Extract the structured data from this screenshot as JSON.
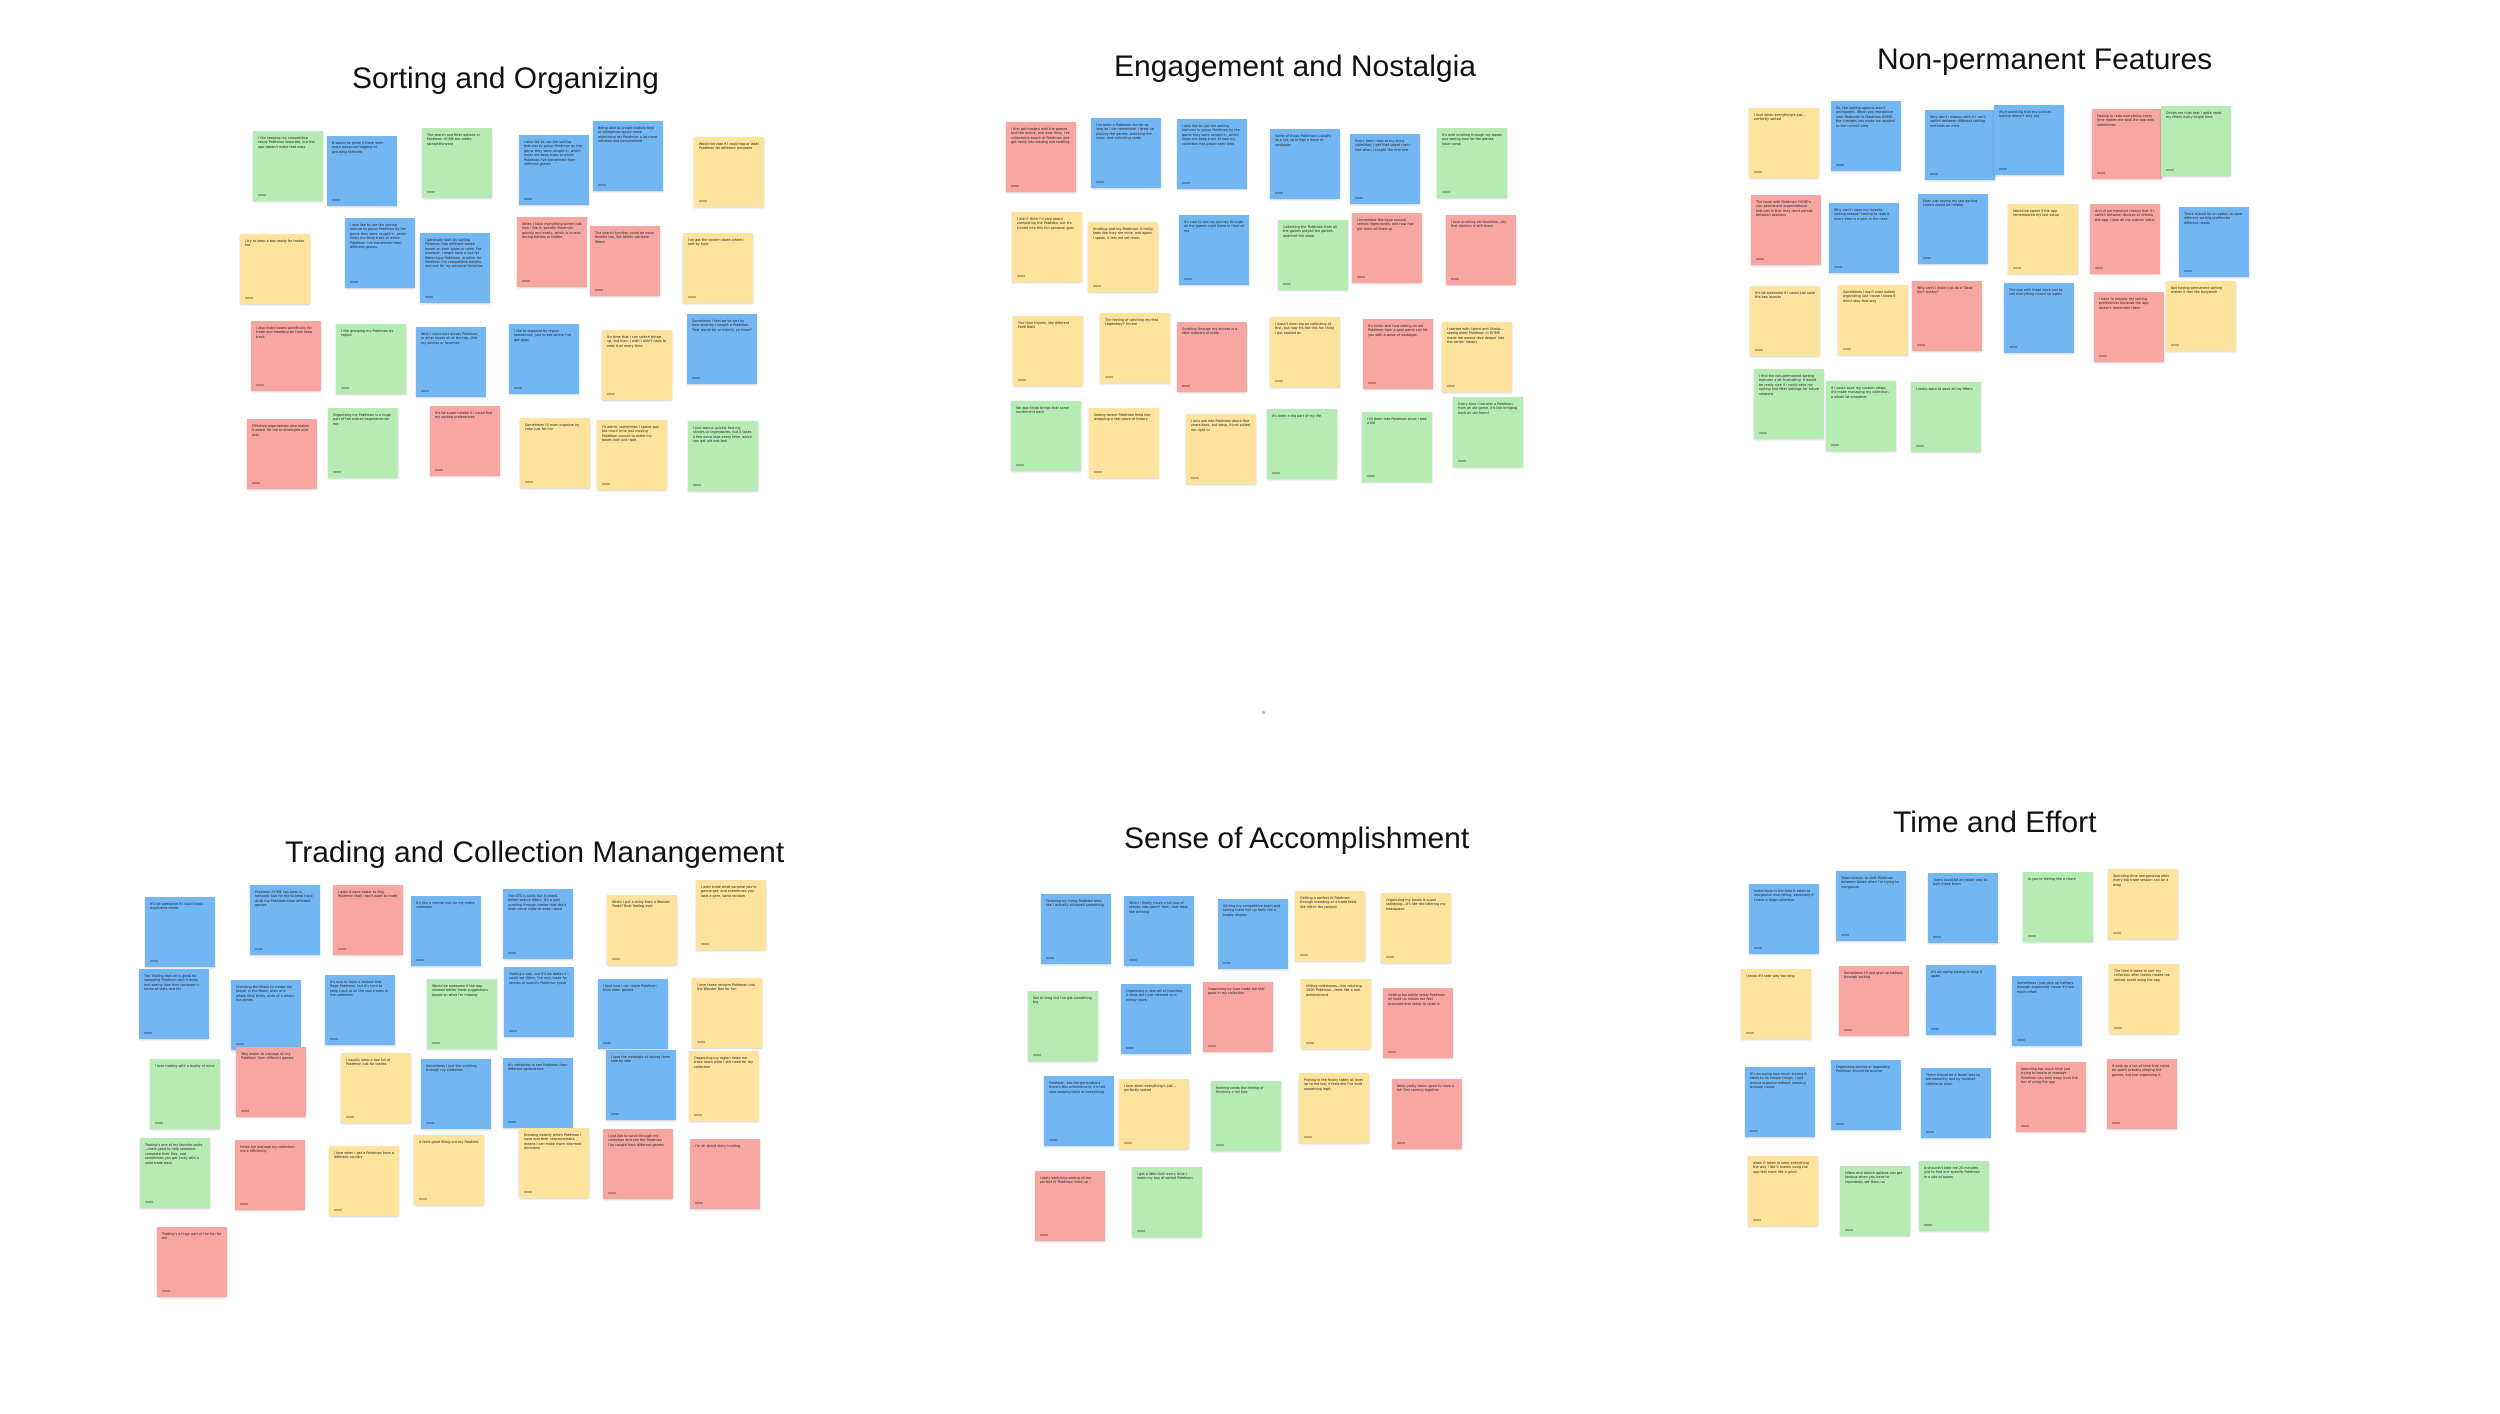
{
  "colors": {
    "yellow": "#fde39b",
    "blue": "#73b6f4",
    "green": "#b6ebb4",
    "red": "#f7a6a2"
  },
  "clusters": [
    {
      "title": "Sorting and Organizing",
      "notes": [
        {
          "c": "green",
          "t": "I like keeping my competitive ready Pokémon separate, but the app doesn't make that easy"
        },
        {
          "c": "blue",
          "t": "It would be great if there were more advanced tagging or grouping features"
        },
        {
          "c": "green",
          "t": "The search and filter options in Pokémon HOME are pretty straightforward"
        },
        {
          "c": "blue",
          "t": "I also like to use the sorting features to group Pokémon by the game they were caught in, which helps me keep track of which Pokémon I've transferred from different games"
        },
        {
          "c": "blue",
          "t": "Being able to create custom tags or categories would make organizing my Pokémon a lot more intuitive and personalized"
        },
        {
          "c": "yellow",
          "t": "Would be cool if I could tag or label Pokémon for different purposes"
        },
        {
          "c": "yellow",
          "t": "I try to keep a box ready for trades too"
        },
        {
          "c": "blue",
          "t": "I also like to use the sorting feature to group Pokémon by the game they were caught in, which helps me keep track of which Pokémon I've transferred from different games"
        },
        {
          "c": "blue",
          "t": "I generally start by sorting Pokémon into different boxes based on their types or roles. For example, I might have a box for Water-type Pokémon, another for Pokémon I'm competitive battles, and one for my personal favorites"
        },
        {
          "c": "red",
          "t": "When I have everything sorted just how I like it, specific Pokémon quickly and easily, which is crucial during battles or trades"
        },
        {
          "c": "red",
          "t": "The search function could be more flexible too, like better combine filters"
        },
        {
          "c": "yellow",
          "t": "I've got the system down where I sort by type"
        },
        {
          "c": "red",
          "t": "I also make boxes specifically for trade and breeding so I can keep track"
        },
        {
          "c": "green",
          "t": "I like grouping my Pokémon by region"
        },
        {
          "c": "blue",
          "t": "Wish I could sort across Pokémon in other boxes all at the top—like my shinies or favorites"
        },
        {
          "c": "blue",
          "t": "I like to organize by region sometimes, just to see where I've got gaps"
        },
        {
          "c": "yellow",
          "t": "It's time that I can switch things up, but man, I wish I didn't have to redo it all every time"
        },
        {
          "c": "blue",
          "t": "Sometimes I feel we've sort by how recently I caught a Pokémon. That would be so helpful, ya know?"
        },
        {
          "c": "red",
          "t": "Effective organization also makes it easier for me to strategize and plan"
        },
        {
          "c": "green",
          "t": "Organizing my Pokémon is a huge part of the overall experience for me"
        },
        {
          "c": "red",
          "t": "It'd be super helpful if I could find my sorting preferences"
        },
        {
          "c": "yellow",
          "t": "Sometimes I'll even organize by color just for fun"
        },
        {
          "c": "yellow",
          "t": "I'd admit, sometimes I spend way too much time just moving Pokémon around to make my boxes look just right"
        },
        {
          "c": "green",
          "t": "I just wanna quickly find my shinies or legendaries, but it takes a few extra taps every time, which can get old real fast"
        }
      ]
    },
    {
      "title": "Engagement and Nostalgia",
      "notes": [
        {
          "c": "red",
          "t": "I first got hooked with the games and the anime, and over time, I've collected a bunch of Pokémon and got really into trading and battling"
        },
        {
          "c": "blue",
          "t": "I've been a Pokémon fan for as long as I can remember. I grew up playing the games, watching the show, and collecting cards"
        },
        {
          "c": "blue",
          "t": "I also like to use the sorting features to group Pokémon by the game they were caught in, which helps me keep track of how my collection has grown over time"
        },
        {
          "c": "blue",
          "t": "Some of those Pokémon I caught as a kid, so brings a wave of nostalgia"
        },
        {
          "c": "blue",
          "t": "Every time I look at my shiny collection, I get that sweet rush I had when I caught the first one"
        },
        {
          "c": "green",
          "t": "It's wild scrolling through my boxes and seeing how far the games have come"
        },
        {
          "c": "yellow",
          "t": "I didn't think I'd care about completing the Pokédex, but it's turned into this fun personal goal"
        },
        {
          "c": "yellow",
          "t": "Scrolling and my Pokémon. It really feels like they are mine, and again I speak, it lets me set them"
        },
        {
          "c": "blue",
          "t": "It's cool to see my journey through all the games right there in front of me"
        },
        {
          "c": "green",
          "t": "Collecting the Pokémon from all the games played the games, watched the show"
        },
        {
          "c": "red",
          "t": "I remember the hype around certain legendaries, and now I've got them all lined up"
        },
        {
          "c": "red",
          "t": "I love scrolling old favorites—my first starters is still there"
        },
        {
          "c": "yellow",
          "t": "The time travels, like different Poké Balls"
        },
        {
          "c": "yellow",
          "t": "The feeling of catching my first Legendary? Unreal"
        },
        {
          "c": "red",
          "t": "Scrolling through my shinies is a little moment of pride"
        },
        {
          "c": "yellow",
          "t": "I wasn't even big on collecting at first, but now it's like this fun thing I got hooked on"
        },
        {
          "c": "red",
          "t": "It's kinda wild how seeing an old Pokémon from a past game can hit you with a wave of nostalgia"
        },
        {
          "c": "yellow",
          "t": "I started with Sword and Shield—seeing older Pokémon in HOME made me wanna dive deeper into the series' history"
        },
        {
          "c": "green",
          "t": "We app kinda brings that same excitement back"
        },
        {
          "c": "yellow",
          "t": "Seeing recent Pokémon feels like wrapping a real piece of history"
        },
        {
          "c": "yellow",
          "t": "I only got into Pokémon about five years back, but dang, it just pulled me right in"
        },
        {
          "c": "green",
          "t": "It's been a big part of my life"
        },
        {
          "c": "green",
          "t": "I've been into Pokémon since I was a kid"
        },
        {
          "c": "green",
          "t": "Every time I transfer a Pokémon from an old game, it's like bringing back an old friend"
        }
      ]
    },
    {
      "title": "Non-permanent Features",
      "notes": [
        {
          "c": "yellow",
          "t": "I love when everything's just… perfectly sorted"
        },
        {
          "c": "blue",
          "t": "So, the sorting options aren't permanent. When you reorganize your Pokémon in Pokémon HOME, the changes you make are applied to the current view"
        },
        {
          "c": "blue",
          "t": "Why don't I always stick if I can't switch between different sorting methods on mew"
        },
        {
          "c": "blue",
          "t": "It's frustrating that my custom sorting doesn't stay put"
        },
        {
          "c": "red",
          "t": "Having to redo everything every time makes me wish the app was sometimes"
        },
        {
          "c": "green",
          "t": "Drives me nuts that I gotta reset my filters every single time"
        },
        {
          "c": "red",
          "t": "The issue with Pokémon HOME's non-permanent organizational features is that they don't persist between sessions"
        },
        {
          "c": "blue",
          "t": "Why can't I save my favorite sorting setups? Having to redo it every time is a pain in the neck"
        },
        {
          "c": "blue",
          "t": "Even just saving my last sorting choice would be helpful"
        },
        {
          "c": "yellow",
          "t": "Would be sweet if the app remembered my last setup"
        },
        {
          "c": "red",
          "t": "And of permanence means that if I switch between devices or refresh the app, I lose all my custom setup"
        },
        {
          "c": "blue",
          "t": "There should be an option to save different sorting profiles for different needs"
        },
        {
          "c": "yellow",
          "t": "It'd be awesome if I could just save the box layouts"
        },
        {
          "c": "yellow",
          "t": "Sometimes I don't even bother organizing just 'cause I know it won't stay that way"
        },
        {
          "c": "red",
          "t": "Why can't I make just do a 'Save Sort' button?"
        },
        {
          "c": "blue",
          "t": "The app with those back just to see everything mixed up again"
        },
        {
          "c": "red",
          "t": "I have to reapply my sorting preferences because the app doesn't remember them"
        },
        {
          "c": "yellow",
          "t": "Not having permanent sorting makes it feel like busywork"
        },
        {
          "c": "green",
          "t": "I find the non-permanent sorting features a bit frustrating. It would be really nice if I could save my sorting and filter settings for future sessions"
        },
        {
          "c": "green",
          "t": "If I could save my custom views, it'd make managing my collection a whole lot smoother"
        },
        {
          "c": "green",
          "t": "I really want to save all my filters"
        }
      ]
    },
    {
      "title": "Trading and Collection Manangement",
      "notes": [
        {
          "c": "blue",
          "t": "It'd be awesome if I could track duplicates easier"
        },
        {
          "c": "blue",
          "t": "Pokémon HOME has been a fantastic tool for me to keep track of all my Pokémon from different games"
        },
        {
          "c": "red",
          "t": "I wish it were easier to flag Pokémon that I don't want to trade"
        },
        {
          "c": "blue",
          "t": "It's like a central hub for my entire collection"
        },
        {
          "c": "blue",
          "t": "The GTS is solid, but it needs better search filters. It's a pain scrolling through trades that don't even come close to what I want"
        },
        {
          "c": "yellow",
          "t": "When I put a shiny from a Wonder Trade? Best feeling ever"
        },
        {
          "c": "yellow",
          "t": "I wish trade what surprise you're gonna get, and sometimes you land a gem, sorta random"
        },
        {
          "c": "blue",
          "t": "The Trading feature is great for swapping Pokémon with friends and seeing how they compare in terms of stats and IVs"
        },
        {
          "c": "blue",
          "t": "Checking the filters to create the player in the Moon, ones of a whole little tricks, ones of a which-the-series"
        },
        {
          "c": "blue",
          "t": "It's nice to have a feature that Rage Pokémon, but it's hard to keep track of all the cool trades in the collection"
        },
        {
          "c": "green",
          "t": "Would be awesome if the app showed better trade suggestions based on what I'm missing"
        },
        {
          "c": "blue",
          "t": "Trading's cool, but it'd be better if I could set filters, like only trade for shinies or specific Pokémon types"
        },
        {
          "c": "blue",
          "t": "I love how I can move Pokémon from older games"
        },
        {
          "c": "yellow",
          "t": "I love those random Pokémon into the Wonder Box for fun"
        },
        {
          "c": "green",
          "t": "I love trading with a buddy of mine"
        },
        {
          "c": "red",
          "t": "Way easier to manage all my Pokémon from different games"
        },
        {
          "c": "yellow",
          "t": "I usually keep a box full of Pokémon just for trades"
        },
        {
          "c": "blue",
          "t": "Sometimes I just like scrolling through my collection"
        },
        {
          "c": "blue",
          "t": "It's satisfying to see Pokémon from different generations"
        },
        {
          "c": "blue",
          "t": "I love the nostalgia of having them side by side"
        },
        {
          "c": "yellow",
          "t": "Organizing my region helps me track down what I still need for my collection"
        },
        {
          "c": "green",
          "t": "Trading's one of my favorite parts—feels good to help someone complete their Dex, and sometimes you get lucky with a solid trade back"
        },
        {
          "c": "red",
          "t": "Helps me manage my collection more efficiently"
        },
        {
          "c": "yellow",
          "t": "I love when I get a Pokémon from a different country"
        },
        {
          "c": "yellow",
          "t": "It feels good filling out my Pokédex"
        },
        {
          "c": "yellow",
          "t": "Knowing exactly which Pokémon I have and their characteristics means I can make more informed decisions"
        },
        {
          "c": "red",
          "t": "I just like to scroll through my collection and see the Pokémon I've caught from different games"
        },
        {
          "c": "red",
          "t": "I'm all about shiny hunting"
        },
        {
          "c": "red",
          "t": "Trading's a huge part of the fun for me"
        }
      ]
    },
    {
      "title": "Sense of Accomplishment",
      "notes": [
        {
          "c": "blue",
          "t": "Finishing my living Pokédex feels like I actually achieved something"
        },
        {
          "c": "blue",
          "t": "When I finally move a full box of shinies into place? Yeah, that feels like winning"
        },
        {
          "c": "blue",
          "t": "Sorting my competitive team and seeing them line up feels like a trophy display"
        },
        {
          "c": "yellow",
          "t": "Getting a perfect IV Pokémon through breeding or a trade feels like hittin' the jackpot"
        },
        {
          "c": "yellow",
          "t": "Organizing my boxes is super satisfying—it's like decluttering my headspace"
        },
        {
          "c": "green",
          "t": "Not to brag but I've got something big"
        },
        {
          "c": "blue",
          "t": "Organizing a new set of favorites, it feels like I just cleaned up a messy room"
        },
        {
          "c": "red",
          "t": "Organizing by type make me feel good in my collection"
        },
        {
          "c": "yellow",
          "t": "Hitting milestones—like catching 1000 Pokémon—feels like a real achievement"
        },
        {
          "c": "red",
          "t": "Getting my battle ready Pokémon all lined up makes me feel prepared and ready to crush it"
        },
        {
          "c": "blue",
          "t": "Pokémon, like the generations there's this achievement; it's not now keeping track of everything"
        },
        {
          "c": "yellow",
          "t": "I love when everything's just… perfectly sorted"
        },
        {
          "c": "green",
          "t": "Nothing beats the feeling of finishing a full Dex"
        },
        {
          "c": "yellow",
          "t": "Putting in the finally taken all level up to me too, it feels like I've built something legit"
        },
        {
          "c": "red",
          "t": "Keep pretty damn good to have a full Dex coming together"
        },
        {
          "c": "red",
          "t": "Lately switching seeing all my perfect IV Pokémon lined up"
        },
        {
          "c": "green",
          "t": "I get a little thrill every time I make my box of sorted Pokémon"
        }
      ]
    },
    {
      "title": "Time and Effort",
      "notes": [
        {
          "c": "blue",
          "t": "Initial issue is the time it takes to reorganize everything, especially if I have a large collection"
        },
        {
          "c": "blue",
          "t": "Takes forever to shift Pokémon between boxes when I'm trying to reorganize"
        },
        {
          "c": "blue",
          "t": "There could be an easier way to bulk move them"
        },
        {
          "c": "green",
          "t": "Is you're feeling like a chore"
        },
        {
          "c": "yellow",
          "t": "Spending time reorganizing after every big trade session can be a drag"
        },
        {
          "c": "yellow",
          "t": "I know it'll take way too long"
        },
        {
          "c": "red",
          "t": "Sometimes I'll just give up halfway through sorting"
        },
        {
          "c": "blue",
          "t": "It's annoying having to drag it again"
        },
        {
          "c": "blue",
          "t": "Sometimes I just give up halfway through organizing 'cause it's too much effort"
        },
        {
          "c": "yellow",
          "t": "The time it takes to sort my collection after trades makes me almost avoid using the app"
        },
        {
          "c": "blue",
          "t": "It's annoying how much staring it takes to do simple things. I just wanna organize without jumping through hoops"
        },
        {
          "c": "blue",
          "t": "Organizing shinies or legendary Pokémon should be quicker"
        },
        {
          "c": "blue",
          "t": "There should be a faster way to permanently sort by multiple criteria at once"
        },
        {
          "c": "red",
          "t": "Spending too much time just trying to locate or manage Pokémon can take away from the fun of using the app"
        },
        {
          "c": "red",
          "t": "It eats up a ton of time that could be spent actually playing the games, but just organizing it"
        },
        {
          "c": "yellow",
          "t": "when it takes to keep everything the way I like it makes using the app feel more like a grind"
        },
        {
          "c": "green",
          "t": "Filters and search options can get tedious when you have to repeatedly set them up"
        },
        {
          "c": "green",
          "t": "It shouldn't take me 20 minutes just to find one specific Pokémon in a pile of boxes"
        }
      ]
    }
  ]
}
